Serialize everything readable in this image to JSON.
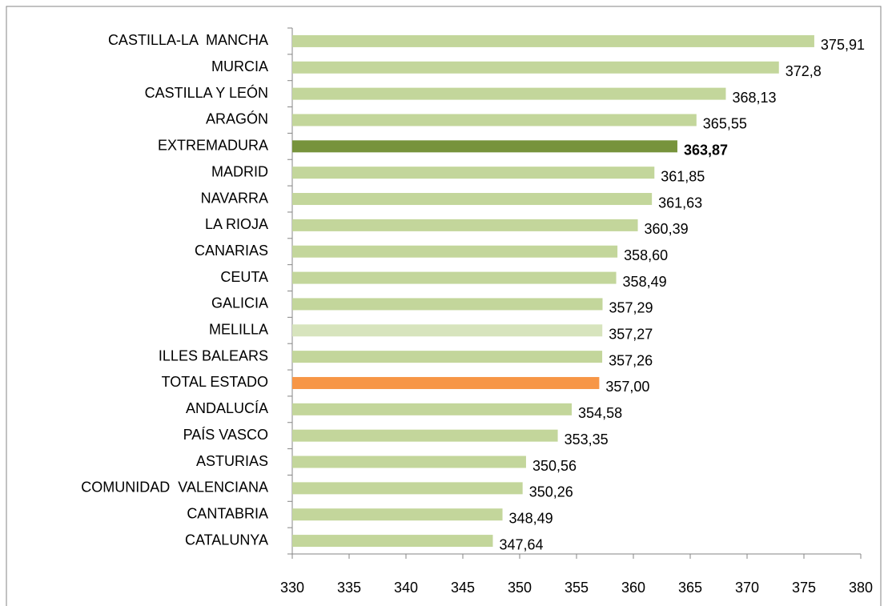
{
  "chart_data": {
    "type": "hbar",
    "categories": [
      "CASTILLA-LA  MANCHA",
      "MURCIA",
      "CASTILLA Y LEÓN",
      "ARAGÓN",
      "EXTREMADURA",
      "MADRID",
      "NAVARRA",
      "LA RIOJA",
      "CANARIAS",
      "CEUTA",
      "GALICIA",
      "MELILLA",
      "ILLES BALEARS",
      "TOTAL ESTADO",
      "ANDALUCÍA",
      "PAÍS VASCO",
      "ASTURIAS",
      "COMUNIDAD  VALENCIANA",
      "CANTABRIA",
      "CATALUNYA"
    ],
    "values": [
      375.91,
      372.8,
      368.13,
      365.55,
      363.87,
      361.85,
      361.63,
      360.39,
      358.6,
      358.49,
      357.29,
      357.27,
      357.26,
      357.0,
      354.58,
      353.35,
      350.56,
      350.26,
      348.49,
      347.64
    ],
    "value_labels": [
      "375,91",
      "372,8",
      "368,13",
      "365,55",
      "363,87",
      "361,85",
      "361,63",
      "360,39",
      "358,60",
      "358,49",
      "357,29",
      "357,27",
      "357,26",
      "357,00",
      "354,58",
      "353,35",
      "350,56",
      "350,26",
      "348,49",
      "347,64"
    ],
    "colors": [
      "#c3d69b",
      "#c3d69b",
      "#c3d69b",
      "#c3d69b",
      "#77933c",
      "#c3d69b",
      "#c3d69b",
      "#c3d69b",
      "#c3d69b",
      "#c3d69b",
      "#c3d69b",
      "#d7e4bd",
      "#c3d69b",
      "#f79646",
      "#c3d69b",
      "#c3d69b",
      "#c3d69b",
      "#c3d69b",
      "#c3d69b",
      "#c3d69b"
    ],
    "value_label_weights": [
      "normal",
      "normal",
      "normal",
      "normal",
      "bold",
      "normal",
      "normal",
      "normal",
      "normal",
      "normal",
      "normal",
      "normal",
      "normal",
      "normal",
      "normal",
      "normal",
      "normal",
      "normal",
      "normal",
      "normal"
    ],
    "xlim": [
      330,
      380
    ],
    "xticks": [
      330,
      335,
      340,
      345,
      350,
      355,
      360,
      365,
      370,
      375,
      380
    ],
    "grid": false
  }
}
